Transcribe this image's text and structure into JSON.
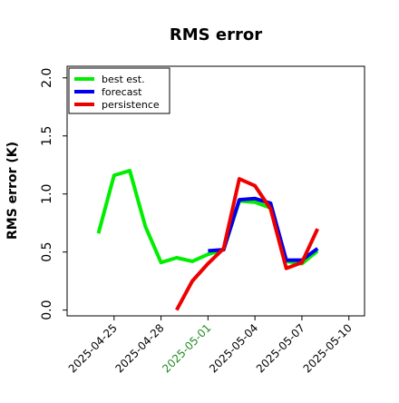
{
  "chart_data": {
    "type": "line",
    "title": "RMS error",
    "xlabel": "",
    "ylabel": "RMS error (K)",
    "ylim": [
      -0.05,
      2.1
    ],
    "xlim": [
      "2025-04-22",
      "2025-05-11"
    ],
    "yticks": [
      0.0,
      0.5,
      1.0,
      1.5,
      2.0
    ],
    "ytick_labels": [
      "0.0",
      "0.5",
      "1.0",
      "1.5",
      "2.0"
    ],
    "xticks": [
      "2025-04-25",
      "2025-04-28",
      "2025-05-01",
      "2025-05-04",
      "2025-05-07",
      "2025-05-10"
    ],
    "xtick_labels": [
      "2025-04-25",
      "2025-04-28",
      "2025-05-01",
      "2025-05-04",
      "2025-05-07",
      "2025-05-10"
    ],
    "highlight_tick": "2025-05-01",
    "highlight_tick_color": "#228b22",
    "grid": false,
    "legend_position": "top-left",
    "series": [
      {
        "name": "best est.",
        "color": "#00ee00",
        "x": [
          "2025-04-24",
          "2025-04-25",
          "2025-04-26",
          "2025-04-27",
          "2025-04-28",
          "2025-04-29",
          "2025-04-30",
          "2025-05-01",
          "2025-05-02",
          "2025-05-03",
          "2025-05-04",
          "2025-05-05",
          "2025-05-06",
          "2025-05-07",
          "2025-05-08"
        ],
        "y": [
          0.66,
          1.16,
          1.2,
          0.72,
          0.41,
          0.45,
          0.42,
          0.48,
          0.52,
          0.94,
          0.93,
          0.88,
          0.42,
          0.4,
          0.51
        ]
      },
      {
        "name": "forecast",
        "color": "#0000ee",
        "x": [
          "2025-05-01",
          "2025-05-02",
          "2025-05-03",
          "2025-05-04",
          "2025-05-05",
          "2025-05-06",
          "2025-05-07",
          "2025-05-08"
        ],
        "y": [
          0.51,
          0.52,
          0.95,
          0.96,
          0.92,
          0.43,
          0.43,
          0.53
        ]
      },
      {
        "name": "persistence",
        "color": "#ee0000",
        "x": [
          "2025-04-29",
          "2025-04-30",
          "2025-05-01",
          "2025-05-02",
          "2025-05-03",
          "2025-05-04",
          "2025-05-05",
          "2025-05-06",
          "2025-05-07",
          "2025-05-08"
        ],
        "y": [
          0.0,
          0.25,
          0.4,
          0.53,
          1.13,
          1.07,
          0.87,
          0.36,
          0.41,
          0.7
        ]
      }
    ]
  }
}
